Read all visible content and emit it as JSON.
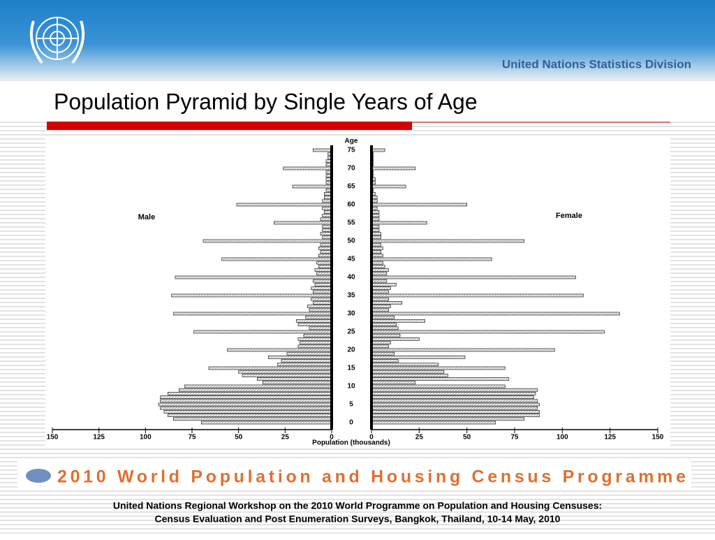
{
  "header": {
    "organization": "United Nations Statistics Division",
    "title": "Population Pyramid by Single Years of Age"
  },
  "chart_data": {
    "type": "pyramid",
    "ylabel": "Age",
    "xlabel": "Population (thousands)",
    "categories": [
      0,
      null,
      null,
      null,
      null,
      5,
      null,
      null,
      null,
      null,
      10,
      null,
      null,
      null,
      null,
      15,
      null,
      null,
      null,
      null,
      20,
      null,
      null,
      null,
      null,
      25,
      null,
      null,
      null,
      null,
      30,
      null,
      null,
      null,
      null,
      35,
      null,
      null,
      null,
      null,
      40,
      null,
      null,
      null,
      null,
      45,
      null,
      null,
      null,
      null,
      50,
      null,
      null,
      null,
      null,
      55,
      null,
      null,
      null,
      null,
      60,
      null,
      null,
      null,
      null,
      65,
      null,
      null,
      null,
      null,
      70,
      null,
      null,
      null,
      null,
      75
    ],
    "series": [
      {
        "name": "Male",
        "color": "#d8d8d8",
        "values": [
          70,
          85,
          88,
          90,
          92,
          93,
          92,
          92,
          88,
          82,
          79,
          37,
          40,
          48,
          50,
          66,
          29,
          27,
          34,
          24,
          56,
          18,
          17,
          18,
          15,
          74,
          12,
          18,
          19,
          14,
          85,
          12,
          13,
          10,
          11,
          86,
          10,
          11,
          9,
          10,
          84,
          8,
          9,
          7,
          8,
          59,
          7,
          6,
          7,
          6,
          69,
          5,
          6,
          5,
          5,
          31,
          6,
          5,
          4,
          5,
          51,
          5,
          4,
          4,
          3,
          21,
          3,
          3,
          3,
          3,
          26,
          3,
          3,
          2,
          2,
          10
        ]
      },
      {
        "name": "Female",
        "color": "#d8d8d8",
        "values": [
          65,
          80,
          88,
          88,
          87,
          88,
          87,
          85,
          86,
          87,
          70,
          23,
          72,
          40,
          38,
          70,
          35,
          14,
          49,
          12,
          96,
          9,
          10,
          25,
          15,
          122,
          14,
          13,
          28,
          12,
          130,
          9,
          10,
          16,
          9,
          111,
          9,
          10,
          13,
          8,
          107,
          8,
          9,
          7,
          6,
          63,
          6,
          5,
          6,
          5,
          80,
          5,
          5,
          4,
          4,
          29,
          4,
          4,
          4,
          3,
          50,
          3,
          3,
          2,
          1,
          18,
          2,
          2,
          1,
          1,
          23,
          1,
          1,
          1,
          1,
          7
        ]
      }
    ],
    "xlim": [
      0,
      150
    ],
    "xticks": [
      0,
      25,
      50,
      75,
      100,
      125,
      150
    ]
  },
  "banner": "2010 World Population and Housing Census Programme",
  "footer": {
    "line1": "United Nations Regional Workshop on the 2010 World Programme on Population and Housing Censuses:",
    "line2": "Census Evaluation and Post Enumeration Surveys, Bangkok, Thailand, 10-14 May, 2010"
  }
}
